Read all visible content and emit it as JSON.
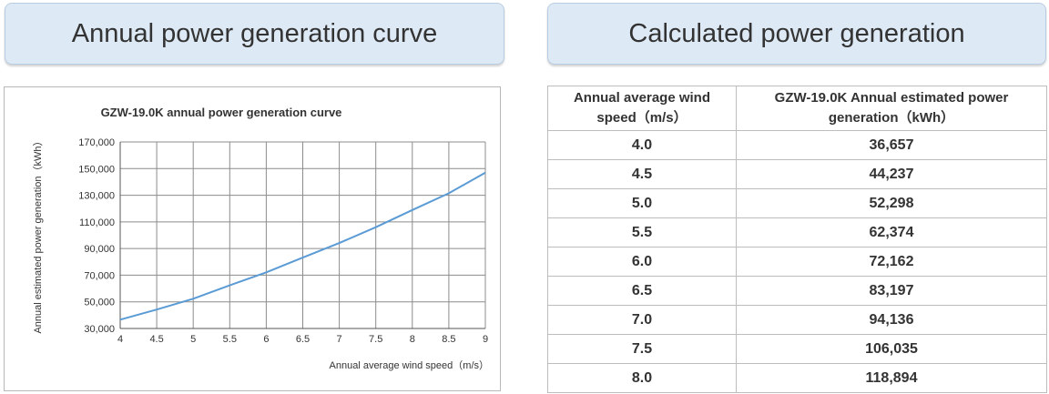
{
  "headers": {
    "left": "Annual power generation curve",
    "right": "Calculated power generation"
  },
  "chart_data": {
    "type": "line",
    "title": "GZW-19.0K annual power generation curve",
    "xlabel": "Annual average wind speed（m/s）",
    "ylabel": "Annual estimated power generation（kWh）",
    "x": [
      4,
      4.5,
      5,
      5.5,
      6,
      6.5,
      7,
      7.5,
      8,
      8.5,
      9
    ],
    "x_ticks": [
      "4",
      "4.5",
      "5",
      "5.5",
      "6",
      "6.5",
      "7",
      "7.5",
      "8",
      "8.5",
      "9"
    ],
    "y_ticks": [
      "30,000",
      "50,000",
      "70,000",
      "90,000",
      "110,000",
      "130,000",
      "150,000",
      "170,000"
    ],
    "y_tick_values": [
      30000,
      50000,
      70000,
      90000,
      110000,
      130000,
      150000,
      170000
    ],
    "xlim": [
      4,
      9
    ],
    "ylim": [
      30000,
      170000
    ],
    "series": [
      {
        "values": [
          36657,
          44237,
          52298,
          62374,
          72162,
          83197,
          94136,
          106035,
          118894,
          131500,
          147000
        ]
      }
    ],
    "line_color": "#5b9bd5",
    "grid": true
  },
  "table": {
    "col1_header": "Annual average wind speed（m/s）",
    "col2_header": "GZW-19.0K Annual estimated power generation（kWh）",
    "rows": [
      {
        "speed": "4.0",
        "power": "36,657"
      },
      {
        "speed": "4.5",
        "power": "44,237"
      },
      {
        "speed": "5.0",
        "power": "52,298"
      },
      {
        "speed": "5.5",
        "power": "62,374"
      },
      {
        "speed": "6.0",
        "power": "72,162"
      },
      {
        "speed": "6.5",
        "power": "83,197"
      },
      {
        "speed": "7.0",
        "power": "94,136"
      },
      {
        "speed": "7.5",
        "power": "106,035"
      },
      {
        "speed": "8.0",
        "power": "118,894"
      }
    ]
  }
}
